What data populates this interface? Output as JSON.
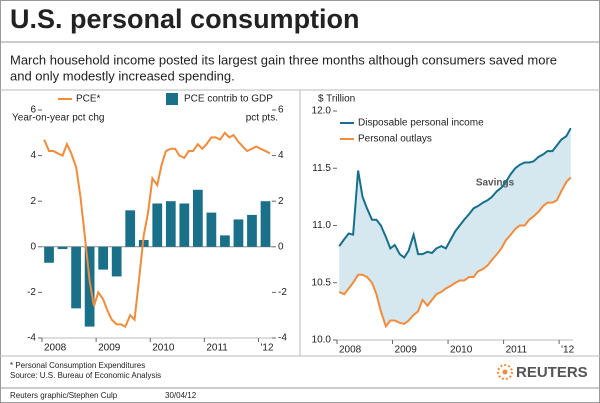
{
  "header": {
    "title": "U.S. personal consumption",
    "subtitle": [
      "March household income posted its largest gain three months although consumers saved more",
      "and only modestly increased spending."
    ]
  },
  "chart_data": [
    {
      "type": "combo",
      "ylabel": "Year-on-year pct chg",
      "y2label": "pct pts.",
      "xlim": [
        2008,
        2012.25
      ],
      "xticks": [
        2008,
        2009,
        2010,
        2011,
        {
          "value": 2012,
          "label": "'12"
        }
      ],
      "ylim": [
        -4,
        6
      ],
      "yticks": [
        -4,
        -2,
        0,
        2,
        4,
        6
      ],
      "y2lim": [
        -4,
        6
      ],
      "y2ticks": [
        -4,
        -2,
        0,
        2,
        4,
        6
      ],
      "series": [
        {
          "name": "PCE*",
          "type": "line",
          "color": "#f08c3c",
          "x": [
            2008.04,
            2008.13,
            2008.21,
            2008.29,
            2008.38,
            2008.46,
            2008.54,
            2008.63,
            2008.71,
            2008.79,
            2008.88,
            2008.96,
            2009.04,
            2009.13,
            2009.21,
            2009.29,
            2009.38,
            2009.46,
            2009.54,
            2009.63,
            2009.71,
            2009.79,
            2009.88,
            2009.96,
            2010.04,
            2010.13,
            2010.21,
            2010.29,
            2010.38,
            2010.46,
            2010.54,
            2010.63,
            2010.71,
            2010.79,
            2010.88,
            2010.96,
            2011.04,
            2011.13,
            2011.21,
            2011.29,
            2011.38,
            2011.46,
            2011.54,
            2011.63,
            2011.71,
            2011.79,
            2011.88,
            2011.96,
            2012.04,
            2012.13,
            2012.21
          ],
          "values": [
            4.7,
            4.2,
            4.2,
            4.1,
            4.0,
            4.5,
            4.1,
            3.5,
            2.2,
            0.5,
            -1.5,
            -2.6,
            -2.0,
            -2.3,
            -2.8,
            -3.2,
            -3.4,
            -3.4,
            -3.5,
            -3.0,
            -3.2,
            -1.5,
            0.5,
            1.5,
            3.0,
            2.7,
            3.6,
            4.2,
            4.3,
            4.3,
            4.0,
            3.9,
            4.2,
            4.2,
            4.5,
            4.3,
            4.5,
            4.8,
            4.8,
            4.7,
            5.0,
            4.8,
            4.9,
            4.6,
            4.4,
            4.2,
            4.3,
            4.4,
            4.3,
            4.2,
            4.1
          ]
        },
        {
          "name": "PCE contrib to GDP",
          "type": "bar",
          "axis": "y2",
          "color": "#1a7089",
          "x": [
            2008.13,
            2008.38,
            2008.63,
            2008.88,
            2009.13,
            2009.38,
            2009.63,
            2009.88,
            2010.13,
            2010.38,
            2010.63,
            2010.88,
            2011.13,
            2011.38,
            2011.63,
            2011.88,
            2012.13
          ],
          "values": [
            -0.7,
            -0.1,
            -2.7,
            -3.5,
            -1.0,
            -1.3,
            1.6,
            0.3,
            1.9,
            2.0,
            1.9,
            2.5,
            1.5,
            0.5,
            1.2,
            1.4,
            2.0
          ]
        }
      ]
    },
    {
      "type": "line",
      "ylabel": "$ Trillion",
      "xlim": [
        2008,
        2012.25
      ],
      "xticks": [
        2008,
        2009,
        2010,
        2011,
        {
          "value": 2012,
          "label": "'12"
        }
      ],
      "ylim": [
        10,
        12
      ],
      "yticks": [
        {
          "value": 10,
          "label": "10.0"
        },
        10.5,
        {
          "value": 11,
          "label": "11.0"
        },
        11.5,
        {
          "value": 12,
          "label": "12.0"
        }
      ],
      "fill_between": {
        "color": "#d5e8ef",
        "label": "Savings"
      },
      "series": [
        {
          "name": "Disposable personal income",
          "type": "line",
          "color": "#176f8a",
          "x": [
            2008.04,
            2008.13,
            2008.21,
            2008.29,
            2008.38,
            2008.46,
            2008.54,
            2008.63,
            2008.71,
            2008.79,
            2008.88,
            2008.96,
            2009.04,
            2009.13,
            2009.21,
            2009.29,
            2009.38,
            2009.46,
            2009.54,
            2009.63,
            2009.71,
            2009.79,
            2009.88,
            2009.96,
            2010.04,
            2010.13,
            2010.21,
            2010.29,
            2010.38,
            2010.46,
            2010.54,
            2010.63,
            2010.71,
            2010.79,
            2010.88,
            2010.96,
            2011.04,
            2011.13,
            2011.21,
            2011.29,
            2011.38,
            2011.46,
            2011.54,
            2011.63,
            2011.71,
            2011.79,
            2011.88,
            2011.96,
            2012.04,
            2012.13,
            2012.21
          ],
          "values": [
            10.82,
            10.88,
            10.93,
            10.92,
            11.48,
            11.25,
            11.15,
            11.05,
            11.05,
            11.0,
            10.9,
            10.8,
            10.83,
            10.75,
            10.72,
            10.78,
            10.92,
            10.75,
            10.75,
            10.77,
            10.76,
            10.8,
            10.82,
            10.8,
            10.87,
            10.95,
            11.0,
            11.05,
            11.1,
            11.15,
            11.17,
            11.2,
            11.22,
            11.25,
            11.3,
            11.33,
            11.38,
            11.45,
            11.5,
            11.53,
            11.55,
            11.55,
            11.56,
            11.6,
            11.62,
            11.65,
            11.65,
            11.7,
            11.75,
            11.78,
            11.85
          ]
        },
        {
          "name": "Personal outlays",
          "type": "line",
          "color": "#f08c3c",
          "x": [
            2008.04,
            2008.13,
            2008.21,
            2008.29,
            2008.38,
            2008.46,
            2008.54,
            2008.63,
            2008.71,
            2008.79,
            2008.88,
            2008.96,
            2009.04,
            2009.13,
            2009.21,
            2009.29,
            2009.38,
            2009.46,
            2009.54,
            2009.63,
            2009.71,
            2009.79,
            2009.88,
            2009.96,
            2010.04,
            2010.13,
            2010.21,
            2010.29,
            2010.38,
            2010.46,
            2010.54,
            2010.63,
            2010.71,
            2010.79,
            2010.88,
            2010.96,
            2011.04,
            2011.13,
            2011.21,
            2011.29,
            2011.38,
            2011.46,
            2011.54,
            2011.63,
            2011.71,
            2011.79,
            2011.88,
            2011.96,
            2012.04,
            2012.13,
            2012.21
          ],
          "values": [
            10.42,
            10.4,
            10.45,
            10.5,
            10.57,
            10.57,
            10.55,
            10.5,
            10.4,
            10.25,
            10.12,
            10.17,
            10.17,
            10.15,
            10.14,
            10.17,
            10.22,
            10.25,
            10.35,
            10.3,
            10.35,
            10.4,
            10.42,
            10.45,
            10.47,
            10.5,
            10.52,
            10.52,
            10.55,
            10.55,
            10.6,
            10.62,
            10.65,
            10.7,
            10.75,
            10.8,
            10.87,
            10.92,
            10.97,
            11.0,
            11.0,
            11.05,
            11.08,
            11.12,
            11.17,
            11.2,
            11.2,
            11.22,
            11.3,
            11.38,
            11.42
          ]
        }
      ]
    }
  ],
  "footer": {
    "notes": [
      "* Personal Consumption Expenditures",
      "Source: U.S. Bureau of Economic Analysis"
    ],
    "credit": "Reuters graphic/Stephen Culp",
    "date": "30/04/12",
    "logo": "REUTERS"
  }
}
